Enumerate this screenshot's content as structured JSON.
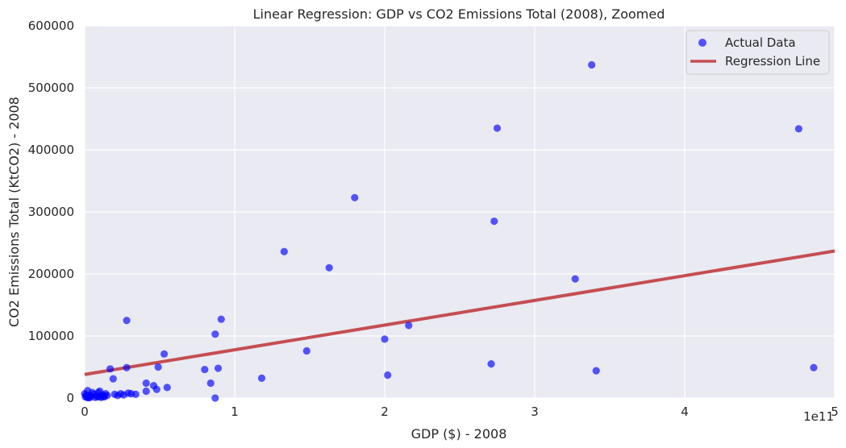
{
  "chart_data": {
    "type": "scatter",
    "title": "Linear Regression: GDP vs CO2 Emissions Total (2008), Zoomed",
    "xlabel": "GDP ($) - 2008",
    "ylabel": "CO2 Emissions Total (KtCO2) - 2008",
    "x_offset_text": "1e11",
    "xlim": [
      0,
      5
    ],
    "ylim": [
      0,
      600000
    ],
    "x_ticks": [
      0,
      1,
      2,
      3,
      4,
      5
    ],
    "x_tick_labels": [
      "0",
      "1",
      "2",
      "3",
      "4",
      "5"
    ],
    "y_ticks": [
      0,
      100000,
      200000,
      300000,
      400000,
      500000,
      600000
    ],
    "y_tick_labels": [
      "0",
      "100000",
      "200000",
      "300000",
      "400000",
      "500000",
      "600000"
    ],
    "grid": true,
    "legend_position": "top-right",
    "colors": {
      "background": "#EAEAF2",
      "grid": "#FFFFFF",
      "points": "#0000FF",
      "line": "#C44E52"
    },
    "series": [
      {
        "name": "Actual Data",
        "kind": "scatter",
        "x": [
          3.38,
          2.75,
          4.76,
          2.73,
          1.8,
          1.33,
          1.63,
          3.27,
          0.91,
          0.28,
          0.87,
          2.16,
          2.0,
          1.48,
          0.53,
          2.71,
          0.49,
          0.89,
          0.8,
          0.17,
          0.28,
          3.41,
          2.02,
          4.86,
          1.18,
          0.19,
          0.41,
          0.84,
          0.46,
          0.55,
          0.48,
          0.41,
          0.87,
          0.1,
          0.05,
          0.02,
          0.0,
          0.01,
          0.03,
          0.04,
          0.06,
          0.08,
          0.09,
          0.11,
          0.12,
          0.13,
          0.14,
          0.15,
          0.2,
          0.22,
          0.24,
          0.26,
          0.29,
          0.31,
          0.34,
          0.005,
          0.07,
          0.09,
          0.11,
          0.13,
          0.015,
          0.025,
          0.035
        ],
        "y": [
          537000,
          435000,
          434000,
          285000,
          323000,
          236000,
          210000,
          192000,
          127000,
          125000,
          103000,
          117000,
          95000,
          76000,
          71000,
          55000,
          50000,
          48000,
          46000,
          47000,
          49000,
          44000,
          37000,
          49000,
          32000,
          31000,
          24000,
          24000,
          20000,
          17000,
          14000,
          11000,
          0,
          11000,
          9000,
          12000,
          7000,
          5000,
          4000,
          3000,
          6000,
          3000,
          2000,
          1000,
          5000,
          3000,
          7000,
          4000,
          6000,
          4000,
          7000,
          5000,
          8000,
          7000,
          6000,
          2000,
          1000,
          9000,
          3000,
          2000,
          1000,
          500,
          800
        ]
      },
      {
        "name": "Regression Line",
        "kind": "line",
        "intercept": 38000,
        "slope": 39800
      }
    ]
  }
}
